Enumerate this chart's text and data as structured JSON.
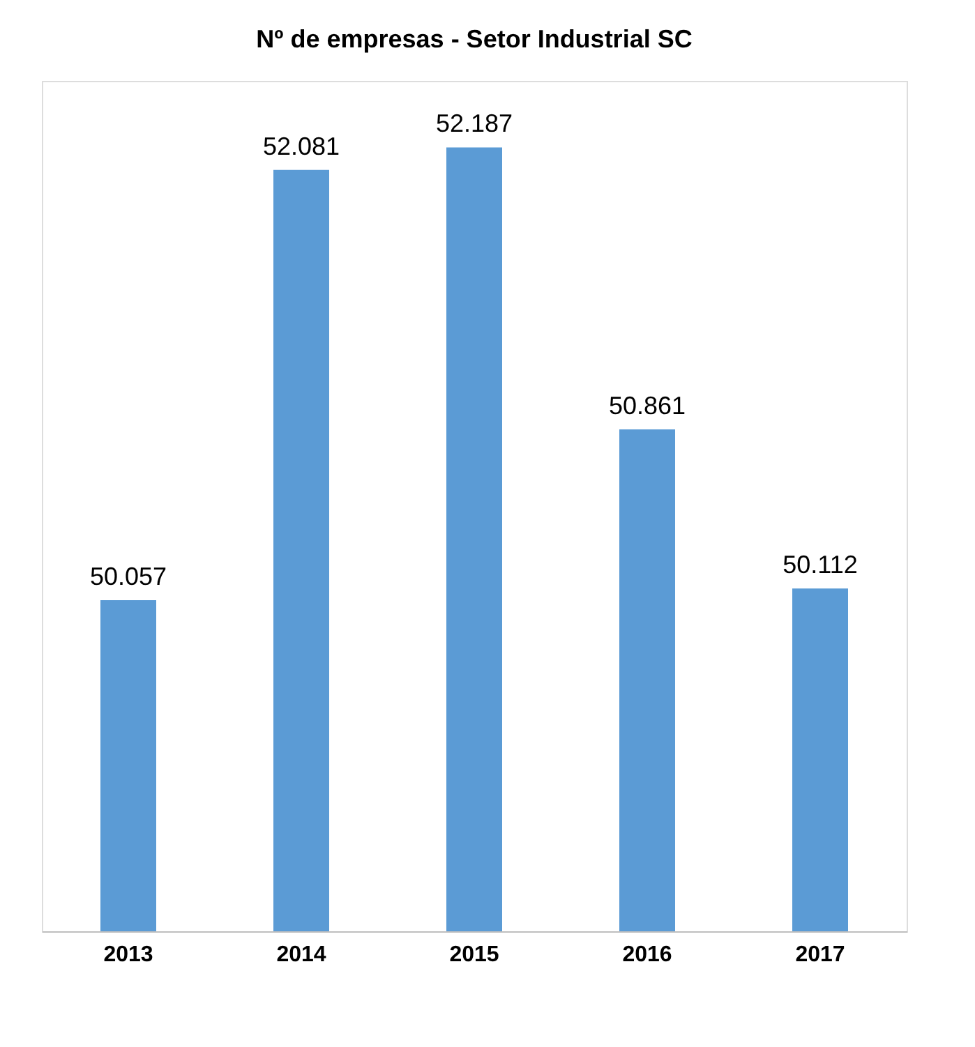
{
  "chart_data": {
    "type": "bar",
    "title": "Nº de empresas - Setor Industrial SC",
    "categories": [
      "2013",
      "2014",
      "2015",
      "2016",
      "2017"
    ],
    "values": [
      50057,
      52081,
      52187,
      50861,
      50112
    ],
    "value_labels": [
      "50.057",
      "52.081",
      "52.187",
      "50.861",
      "50.112"
    ],
    "color": "#5b9bd5",
    "ylim": [
      48500,
      52500
    ],
    "tick_labels": "x"
  }
}
